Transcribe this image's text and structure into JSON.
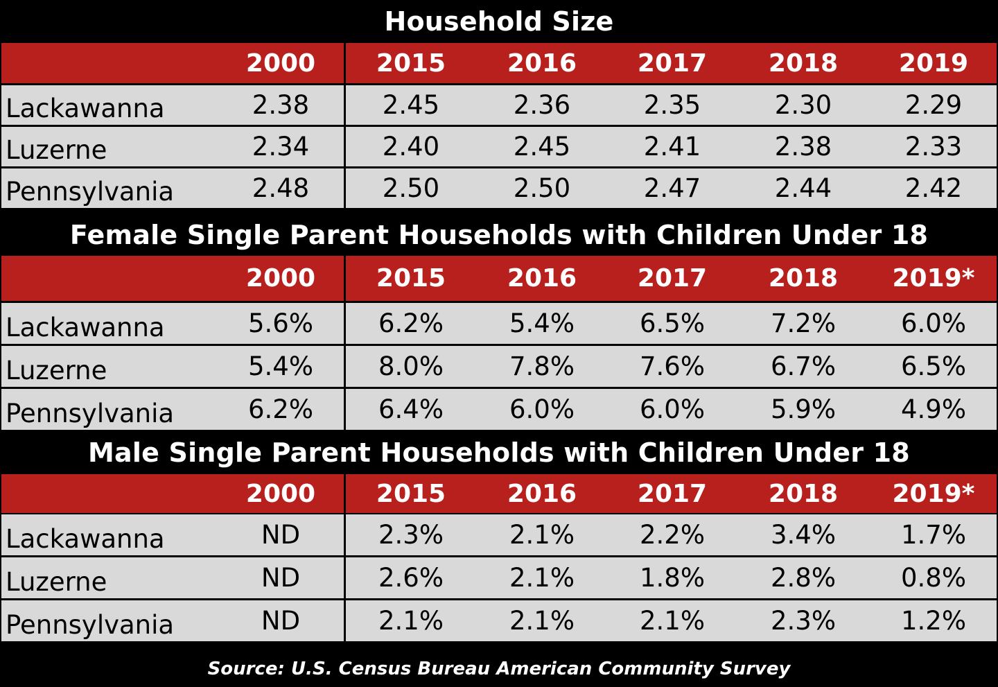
{
  "chart_data": {
    "type": "table",
    "tables": [
      {
        "title": "Household Size",
        "columns": [
          "2000",
          "2015",
          "2016",
          "2017",
          "2018",
          "2019"
        ],
        "rows": [
          {
            "label": "Lackawanna",
            "values": [
              "2.38",
              "2.45",
              "2.36",
              "2.35",
              "2.30",
              "2.29"
            ]
          },
          {
            "label": "Luzerne",
            "values": [
              "2.34",
              "2.40",
              "2.45",
              "2.41",
              "2.38",
              "2.33"
            ]
          },
          {
            "label": "Pennsylvania",
            "values": [
              "2.48",
              "2.50",
              "2.50",
              "2.47",
              "2.44",
              "2.42"
            ]
          }
        ]
      },
      {
        "title": "Female Single Parent Households with Children Under 18",
        "columns": [
          "2000",
          "2015",
          "2016",
          "2017",
          "2018",
          "2019*"
        ],
        "rows": [
          {
            "label": "Lackawanna",
            "values": [
              "5.6%",
              "6.2%",
              "5.4%",
              "6.5%",
              "7.2%",
              "6.0%"
            ]
          },
          {
            "label": "Luzerne",
            "values": [
              "5.4%",
              "8.0%",
              "7.8%",
              "7.6%",
              "6.7%",
              "6.5%"
            ]
          },
          {
            "label": "Pennsylvania",
            "values": [
              "6.2%",
              "6.4%",
              "6.0%",
              "6.0%",
              "5.9%",
              "4.9%"
            ]
          }
        ]
      },
      {
        "title": "Male Single Parent Households with Children Under 18",
        "columns": [
          "2000",
          "2015",
          "2016",
          "2017",
          "2018",
          "2019*"
        ],
        "rows": [
          {
            "label": "Lackawanna",
            "values": [
              "ND",
              "2.3%",
              "2.1%",
              "2.2%",
              "3.4%",
              "1.7%"
            ]
          },
          {
            "label": "Luzerne",
            "values": [
              "ND",
              "2.6%",
              "2.1%",
              "1.8%",
              "2.8%",
              "0.8%"
            ]
          },
          {
            "label": "Pennsylvania",
            "values": [
              "ND",
              "2.1%",
              "2.1%",
              "2.1%",
              "2.3%",
              "1.2%"
            ]
          }
        ]
      }
    ],
    "source": "Source: U.S. Census Bureau American Community Survey"
  },
  "colors": {
    "header_red": "#b8201e",
    "row_gray": "#d9d9d9",
    "background": "#000000"
  }
}
